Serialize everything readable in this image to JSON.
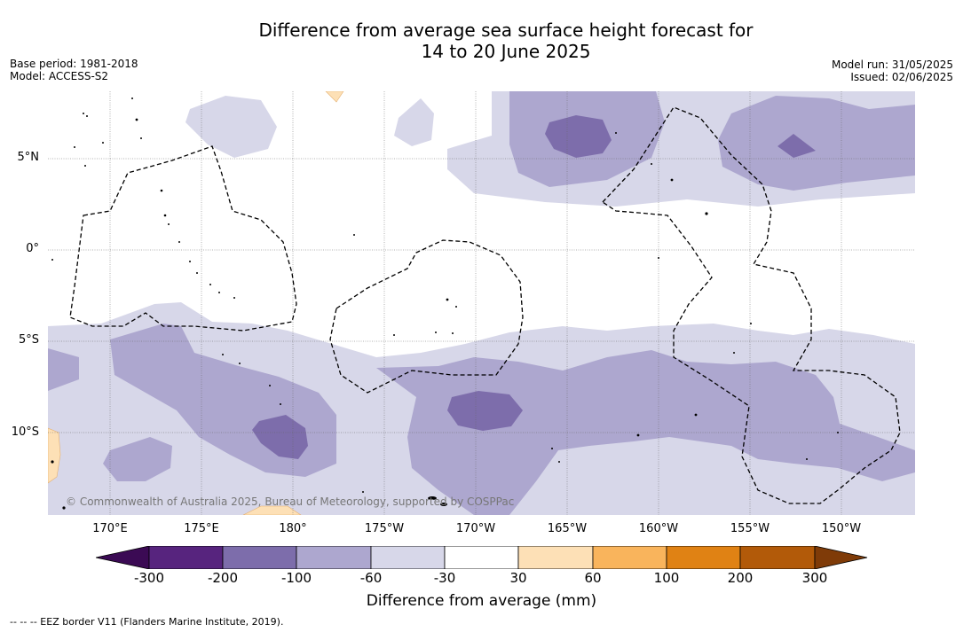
{
  "title": {
    "line1": "Difference from average sea surface height forecast for",
    "line2": "14 to 20 June 2025"
  },
  "meta": {
    "base_period": "Base period: 1981-2018",
    "model": "Model: ACCESS-S2",
    "model_run": "Model run: 31/05/2025",
    "issued": "Issued: 02/06/2025"
  },
  "map": {
    "latitude_labels": [
      "5°N",
      "0°",
      "5°S",
      "10°S"
    ],
    "longitude_labels": [
      "170°E",
      "175°E",
      "180°",
      "175°W",
      "170°W",
      "165°W",
      "160°W",
      "155°W",
      "150°W"
    ],
    "copyright": "© Commonwealth of Australia 2025, Bureau of Meteorology, supported by COSPPac"
  },
  "colorbar": {
    "title": "Difference from average (mm)",
    "ticks": [
      "-300",
      "-200",
      "-100",
      "-60",
      "-30",
      "30",
      "60",
      "100",
      "200",
      "300"
    ],
    "colors": {
      "below_min": "#3b0a54",
      "lt_-200": "#57247e",
      "-200_-100": "#7d6dab",
      "-100_-60": "#ada7cf",
      "-60_-30": "#d7d7e9",
      "-30_30": "#ffffff",
      "30_60": "#fde0b6",
      "60_100": "#f9b45c",
      "100_200": "#e08214",
      "200_300": "#b25a09",
      "above_max": "#7f3b08"
    }
  },
  "legend_note": "-- -- -- EEZ border V11 (Flanders Marine Institute, 2019)."
}
